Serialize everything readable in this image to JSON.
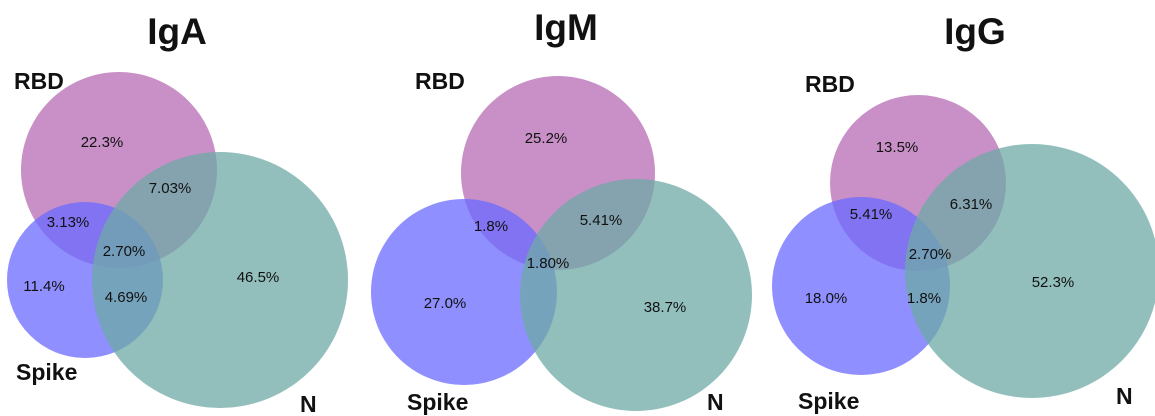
{
  "colors": {
    "RBD": "#b56bb3",
    "Spike": "#6a6aff",
    "N": "#6eaaa6",
    "text": "#111111"
  },
  "diagrams": [
    {
      "title": "IgA",
      "set_labels": {
        "RBD": "RBD",
        "Spike": "Spike",
        "N": "N"
      },
      "regions": {
        "rbd_only": "22.3%",
        "rbd_n": "7.03%",
        "rbd_spike": "3.13%",
        "all_three": "2.70%",
        "spike_only": "11.4%",
        "spike_n": "4.69%",
        "n_only": "46.5%"
      }
    },
    {
      "title": "IgM",
      "set_labels": {
        "RBD": "RBD",
        "Spike": "Spike",
        "N": "N"
      },
      "regions": {
        "rbd_only": "25.2%",
        "rbd_spike": "1.8%",
        "rbd_n": "5.41%",
        "all_three": "1.80%",
        "spike_only": "27.0%",
        "n_only": "38.7%"
      }
    },
    {
      "title": "IgG",
      "set_labels": {
        "RBD": "RBD",
        "Spike": "Spike",
        "N": "N"
      },
      "regions": {
        "rbd_only": "13.5%",
        "rbd_spike": "5.41%",
        "rbd_n": "6.31%",
        "all_three": "2.70%",
        "spike_only": "18.0%",
        "spike_n": "1.8%",
        "n_only": "52.3%"
      }
    }
  ]
}
